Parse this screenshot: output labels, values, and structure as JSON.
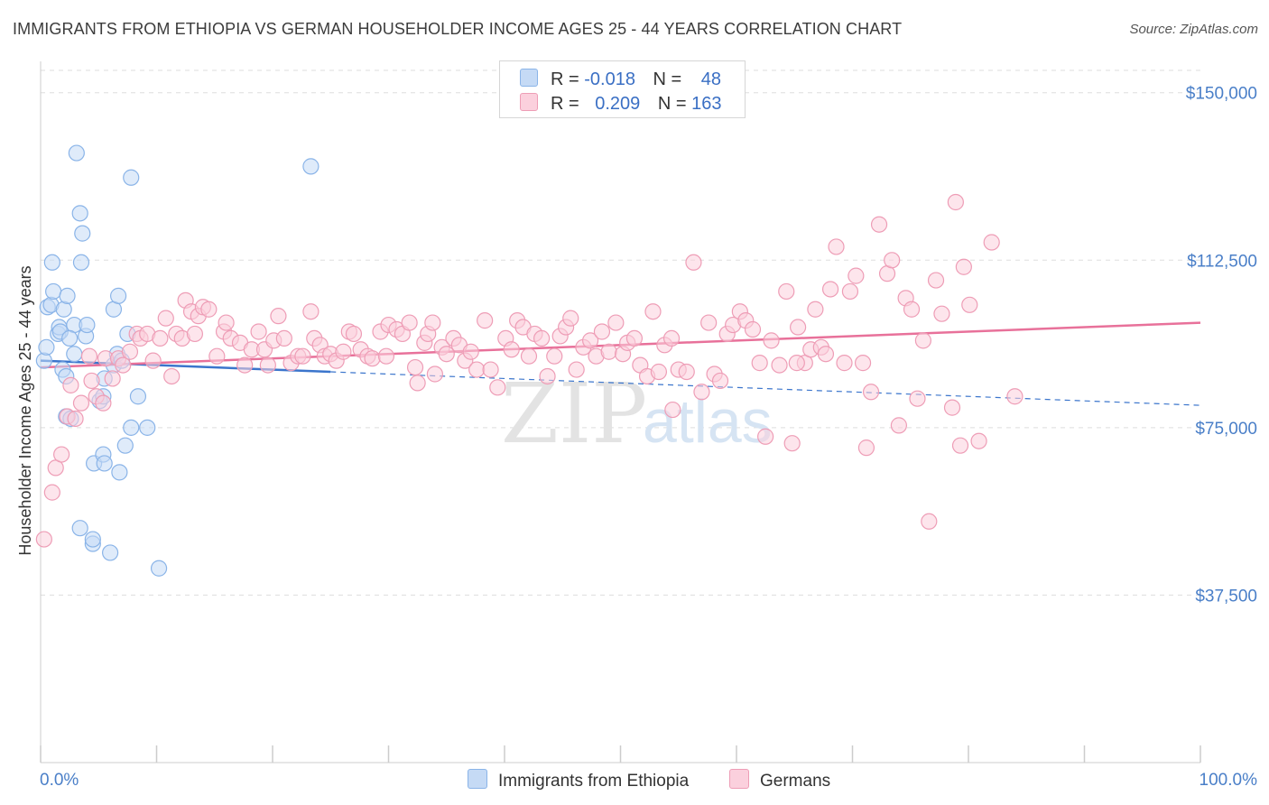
{
  "title": "IMMIGRANTS FROM ETHIOPIA VS GERMAN HOUSEHOLDER INCOME AGES 25 - 44 YEARS CORRELATION CHART",
  "source": "Source: ZipAtlas.com",
  "watermark": {
    "zip": "ZIP",
    "atlas": "atlas"
  },
  "legend": {
    "rows": [
      {
        "r_label": "R =",
        "r_value": "-0.018",
        "n_label": "N =",
        "n_value": "48",
        "color": "#a8c8f0"
      },
      {
        "r_label": "R =",
        "r_value": "0.209",
        "n_label": "N =",
        "n_value": "163",
        "color": "#f6b8cc"
      }
    ]
  },
  "bottom_legend": {
    "series1": "Immigrants from Ethiopia",
    "series2": "Germans"
  },
  "chart_data": {
    "type": "scatter",
    "title": "IMMIGRANTS FROM ETHIOPIA VS GERMAN HOUSEHOLDER INCOME AGES 25 - 44 YEARS CORRELATION CHART",
    "xlabel": "",
    "ylabel": "Householder Income Ages 25 - 44 years",
    "xlim": [
      0,
      100
    ],
    "ylim": [
      0,
      155000
    ],
    "x_tick_labels": [
      "0.0%",
      "100.0%"
    ],
    "y_ticks": [
      37500,
      75000,
      112500,
      150000
    ],
    "y_tick_labels": [
      "$37,500",
      "$75,000",
      "$112,500",
      "$150,000"
    ],
    "grid": true,
    "legend_position": "top-center",
    "series": [
      {
        "name": "Immigrants from Ethiopia",
        "color": "#8ab4e8",
        "fill": "#c5daf5",
        "trend_color": "#3b75cc",
        "trend": {
          "x0": 0,
          "y0": 90000,
          "x1": 100,
          "y1": 80000,
          "solid_until": 25
        },
        "points": [
          [
            0.3,
            90000
          ],
          [
            0.5,
            93000
          ],
          [
            0.6,
            102000
          ],
          [
            0.9,
            102500
          ],
          [
            1.0,
            112000
          ],
          [
            1.1,
            105500
          ],
          [
            1.5,
            96000
          ],
          [
            1.6,
            97500
          ],
          [
            1.7,
            96500
          ],
          [
            1.9,
            88000
          ],
          [
            2.0,
            101500
          ],
          [
            2.2,
            86500
          ],
          [
            2.2,
            77500
          ],
          [
            2.3,
            104500
          ],
          [
            2.6,
            77000
          ],
          [
            2.9,
            91500
          ],
          [
            2.9,
            98000
          ],
          [
            3.1,
            136500
          ],
          [
            3.4,
            52500
          ],
          [
            3.5,
            112000
          ],
          [
            3.6,
            118500
          ],
          [
            3.9,
            95500
          ],
          [
            4.0,
            98000
          ],
          [
            3.4,
            123000
          ],
          [
            4.5,
            49000
          ],
          [
            4.5,
            50000
          ],
          [
            4.6,
            67000
          ],
          [
            5.1,
            81000
          ],
          [
            5.4,
            69000
          ],
          [
            5.5,
            67000
          ],
          [
            5.5,
            86000
          ],
          [
            6.0,
            47000
          ],
          [
            6.3,
            101500
          ],
          [
            6.3,
            89000
          ],
          [
            6.6,
            91500
          ],
          [
            6.7,
            104500
          ],
          [
            6.8,
            65000
          ],
          [
            7.0,
            90000
          ],
          [
            7.3,
            71000
          ],
          [
            7.5,
            96000
          ],
          [
            7.8,
            75000
          ],
          [
            7.8,
            131000
          ],
          [
            8.4,
            82000
          ],
          [
            9.2,
            75000
          ],
          [
            10.2,
            43500
          ],
          [
            23.3,
            133500
          ],
          [
            5.4,
            82000
          ],
          [
            2.5,
            95000
          ]
        ]
      },
      {
        "name": "Germans",
        "color": "#ee9db6",
        "fill": "#fbd0dd",
        "trend_color": "#e8719a",
        "trend": {
          "x0": 0,
          "y0": 88500,
          "x1": 100,
          "y1": 98500,
          "solid_until": 100
        },
        "points": [
          [
            0.3,
            50000
          ],
          [
            1.0,
            60500
          ],
          [
            1.3,
            66000
          ],
          [
            1.8,
            69000
          ],
          [
            2.3,
            77500
          ],
          [
            2.6,
            84500
          ],
          [
            3.0,
            77000
          ],
          [
            3.5,
            80500
          ],
          [
            4.2,
            91000
          ],
          [
            4.4,
            85500
          ],
          [
            4.8,
            82000
          ],
          [
            5.4,
            80500
          ],
          [
            5.6,
            90500
          ],
          [
            6.2,
            86000
          ],
          [
            6.7,
            90500
          ],
          [
            7.1,
            89000
          ],
          [
            7.7,
            92000
          ],
          [
            8.3,
            96000
          ],
          [
            8.6,
            95000
          ],
          [
            9.2,
            96000
          ],
          [
            9.7,
            90000
          ],
          [
            10.3,
            95000
          ],
          [
            10.8,
            99500
          ],
          [
            11.3,
            86500
          ],
          [
            11.7,
            96000
          ],
          [
            12.2,
            95000
          ],
          [
            12.5,
            103500
          ],
          [
            13.0,
            101000
          ],
          [
            13.3,
            96000
          ],
          [
            13.6,
            100000
          ],
          [
            14.0,
            102000
          ],
          [
            14.5,
            101500
          ],
          [
            15.2,
            91000
          ],
          [
            15.8,
            96500
          ],
          [
            16.0,
            98500
          ],
          [
            16.4,
            95000
          ],
          [
            17.2,
            94000
          ],
          [
            17.6,
            89000
          ],
          [
            18.2,
            92500
          ],
          [
            18.8,
            96500
          ],
          [
            19.3,
            92500
          ],
          [
            19.6,
            89000
          ],
          [
            20.1,
            94500
          ],
          [
            20.5,
            100000
          ],
          [
            21.0,
            95000
          ],
          [
            21.6,
            89500
          ],
          [
            22.2,
            91000
          ],
          [
            22.6,
            91000
          ],
          [
            23.3,
            101000
          ],
          [
            23.6,
            95000
          ],
          [
            24.1,
            93500
          ],
          [
            24.5,
            91000
          ],
          [
            25.0,
            91500
          ],
          [
            25.5,
            90000
          ],
          [
            26.1,
            92000
          ],
          [
            26.6,
            96500
          ],
          [
            27.0,
            96000
          ],
          [
            27.6,
            92500
          ],
          [
            28.2,
            91000
          ],
          [
            28.6,
            90500
          ],
          [
            29.3,
            96500
          ],
          [
            29.8,
            91000
          ],
          [
            30.0,
            98000
          ],
          [
            30.7,
            97000
          ],
          [
            31.2,
            96000
          ],
          [
            31.8,
            98500
          ],
          [
            32.3,
            88500
          ],
          [
            32.5,
            85000
          ],
          [
            33.1,
            94000
          ],
          [
            33.4,
            96000
          ],
          [
            34.0,
            87000
          ],
          [
            34.6,
            93000
          ],
          [
            35.0,
            91500
          ],
          [
            35.6,
            95000
          ],
          [
            36.1,
            93500
          ],
          [
            36.6,
            90000
          ],
          [
            37.1,
            92000
          ],
          [
            37.6,
            88000
          ],
          [
            38.3,
            99000
          ],
          [
            38.8,
            88000
          ],
          [
            39.4,
            84000
          ],
          [
            40.1,
            95000
          ],
          [
            40.6,
            92500
          ],
          [
            41.1,
            99000
          ],
          [
            41.6,
            97500
          ],
          [
            42.1,
            91000
          ],
          [
            42.6,
            96000
          ],
          [
            43.2,
            95000
          ],
          [
            43.7,
            86500
          ],
          [
            44.3,
            91000
          ],
          [
            44.8,
            95500
          ],
          [
            45.3,
            97500
          ],
          [
            45.7,
            99500
          ],
          [
            46.2,
            88000
          ],
          [
            46.8,
            93000
          ],
          [
            47.4,
            94500
          ],
          [
            47.9,
            91000
          ],
          [
            48.4,
            96500
          ],
          [
            49.0,
            92000
          ],
          [
            49.6,
            98500
          ],
          [
            50.2,
            91500
          ],
          [
            50.6,
            94000
          ],
          [
            51.2,
            95000
          ],
          [
            51.7,
            89000
          ],
          [
            52.3,
            86500
          ],
          [
            52.8,
            101000
          ],
          [
            53.3,
            87500
          ],
          [
            53.8,
            93500
          ],
          [
            54.5,
            79000
          ],
          [
            55.0,
            88000
          ],
          [
            55.7,
            87500
          ],
          [
            56.3,
            112000
          ],
          [
            57.0,
            83000
          ],
          [
            57.6,
            98500
          ],
          [
            58.1,
            87000
          ],
          [
            58.6,
            85500
          ],
          [
            59.2,
            96000
          ],
          [
            59.7,
            98000
          ],
          [
            60.3,
            101000
          ],
          [
            60.8,
            99000
          ],
          [
            61.4,
            97000
          ],
          [
            62.0,
            89500
          ],
          [
            62.5,
            73000
          ],
          [
            63.0,
            94500
          ],
          [
            63.7,
            89000
          ],
          [
            64.3,
            105500
          ],
          [
            64.8,
            71500
          ],
          [
            65.3,
            97500
          ],
          [
            65.9,
            89500
          ],
          [
            66.4,
            92500
          ],
          [
            66.8,
            101500
          ],
          [
            67.3,
            93000
          ],
          [
            68.1,
            106000
          ],
          [
            68.6,
            115500
          ],
          [
            69.3,
            89500
          ],
          [
            69.8,
            105500
          ],
          [
            70.3,
            109000
          ],
          [
            70.9,
            89500
          ],
          [
            71.2,
            70500
          ],
          [
            71.6,
            83000
          ],
          [
            72.3,
            120500
          ],
          [
            73.0,
            109500
          ],
          [
            73.4,
            112500
          ],
          [
            74.0,
            75500
          ],
          [
            74.6,
            104000
          ],
          [
            75.1,
            101500
          ],
          [
            75.6,
            81500
          ],
          [
            76.1,
            94500
          ],
          [
            76.6,
            54000
          ],
          [
            77.2,
            108000
          ],
          [
            77.7,
            100500
          ],
          [
            78.6,
            79500
          ],
          [
            78.9,
            125500
          ],
          [
            79.3,
            71000
          ],
          [
            79.6,
            111000
          ],
          [
            80.1,
            102500
          ],
          [
            80.9,
            72000
          ],
          [
            82.0,
            116500
          ],
          [
            84.0,
            82000
          ],
          [
            33.8,
            98500
          ],
          [
            65.2,
            89500
          ],
          [
            67.7,
            91500
          ],
          [
            54.4,
            95000
          ]
        ]
      }
    ]
  }
}
